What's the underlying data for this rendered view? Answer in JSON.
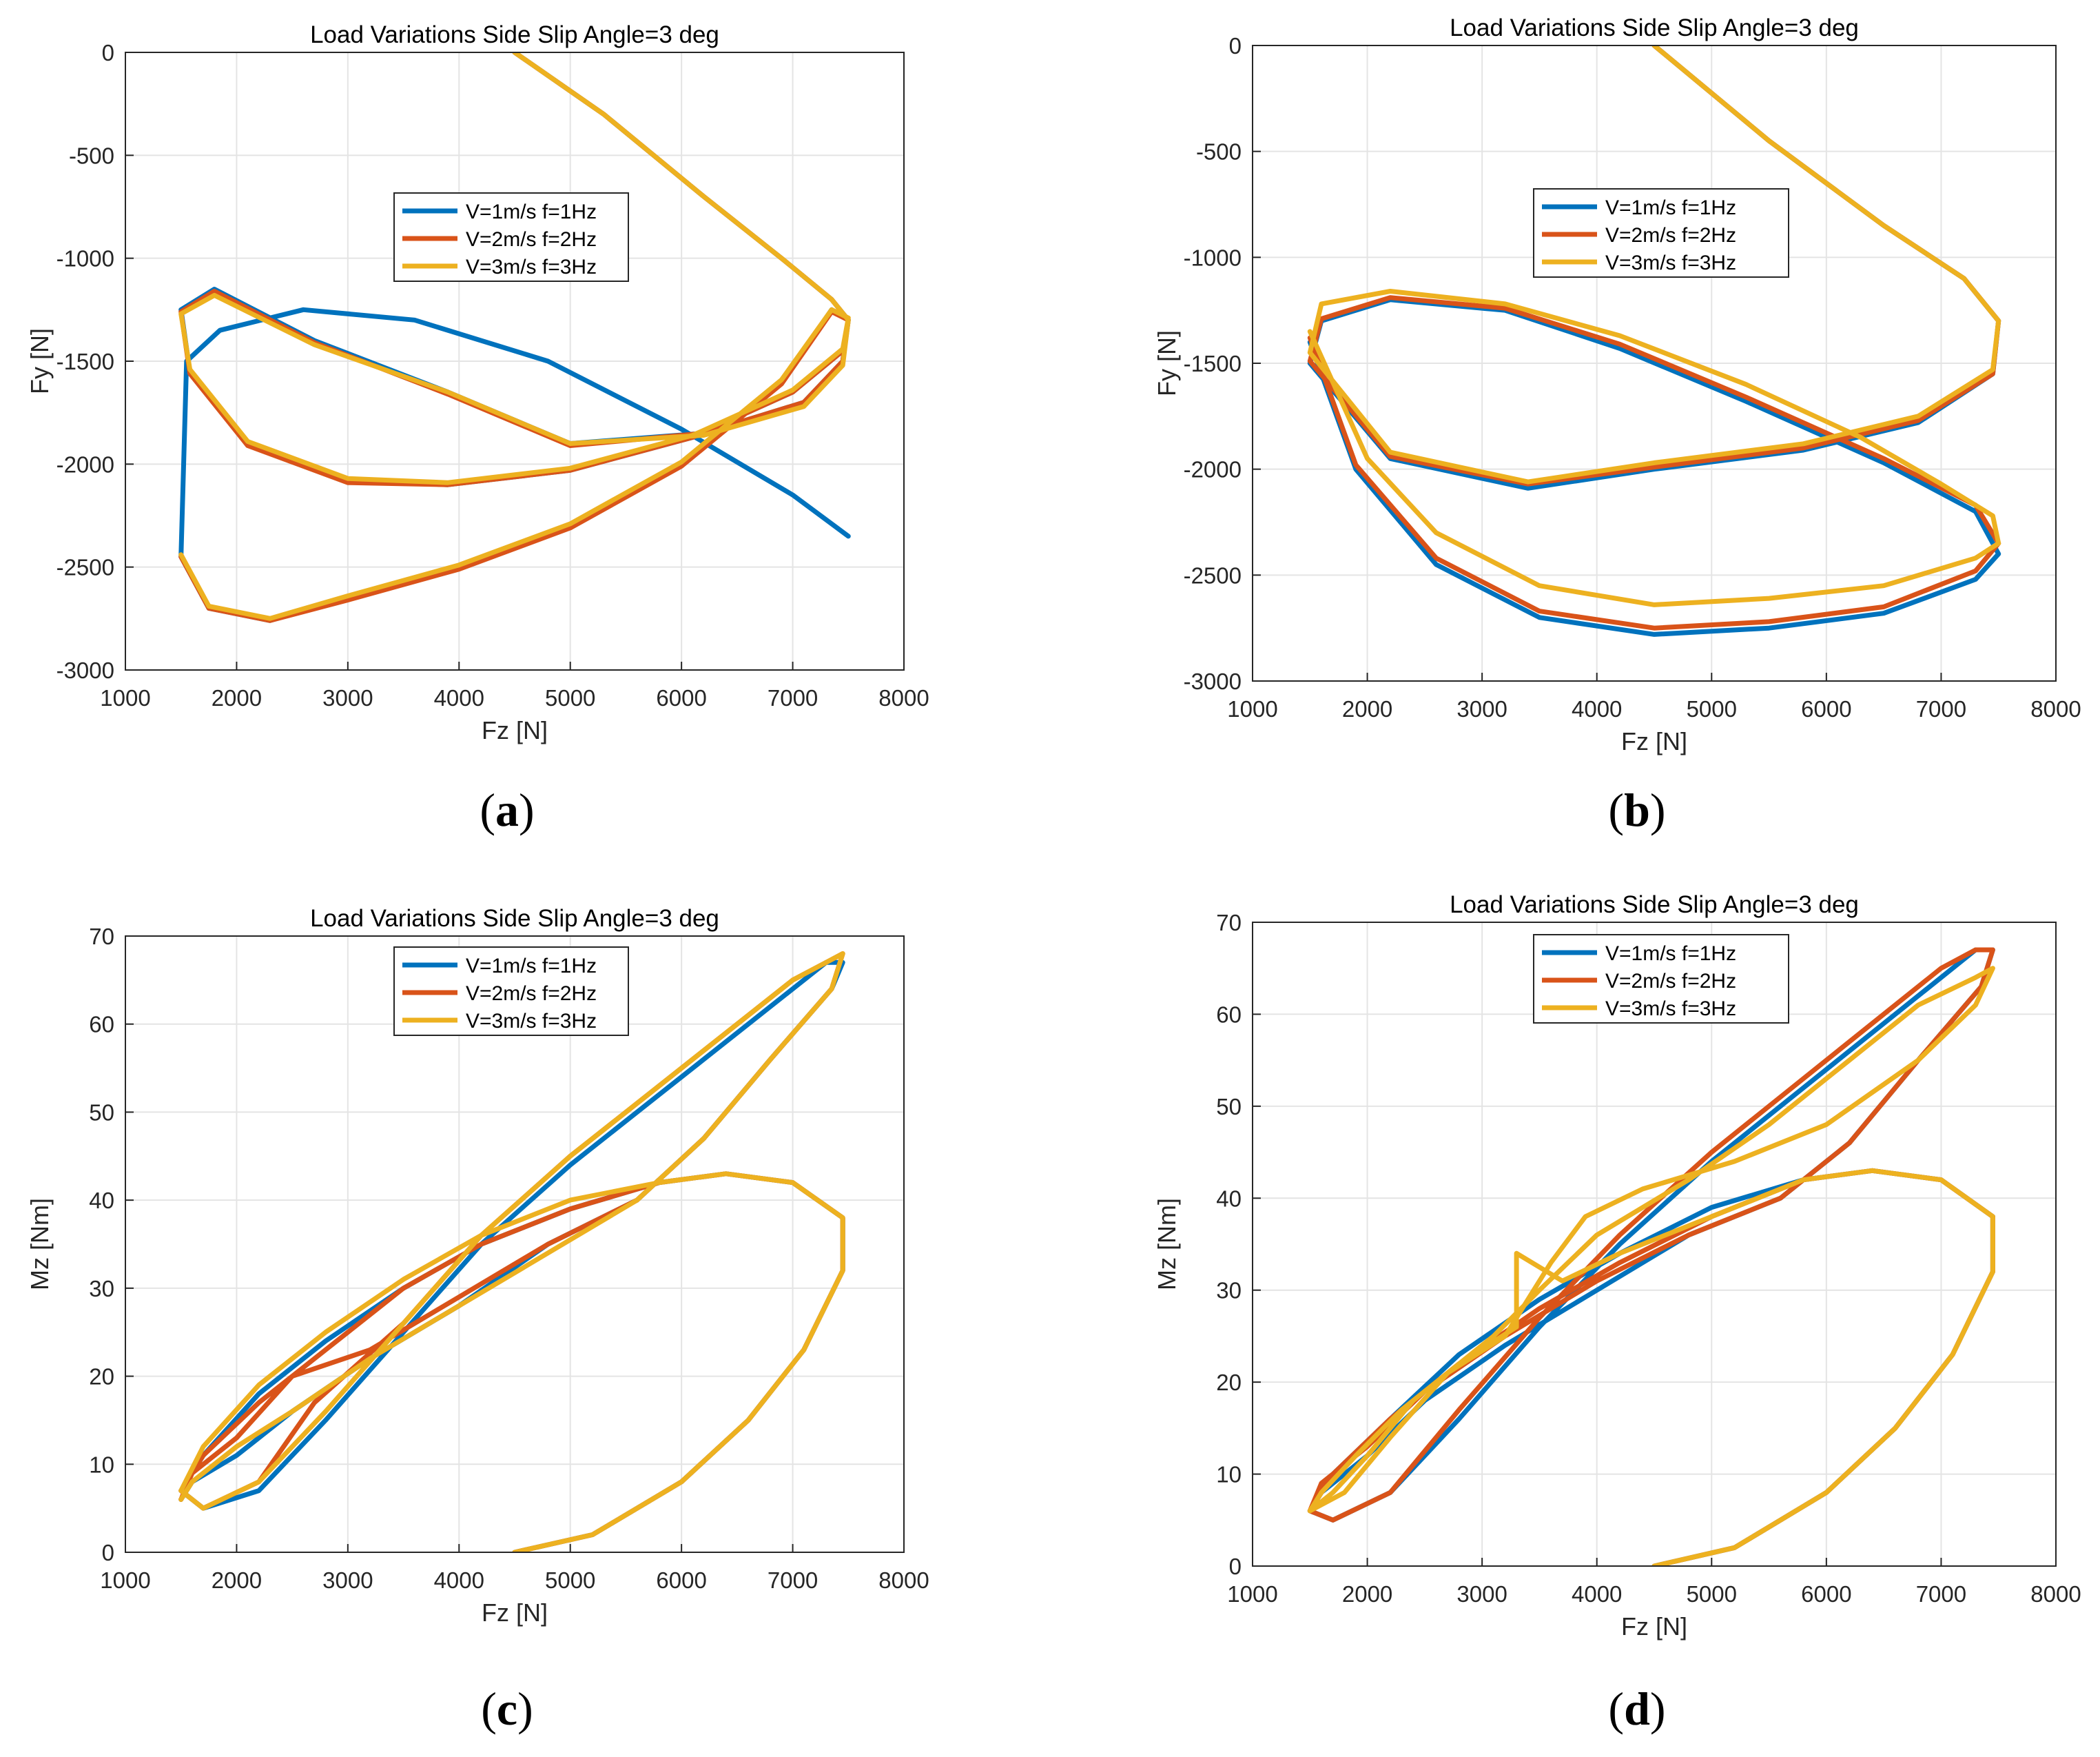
{
  "figure": {
    "captions": [
      {
        "letter": "a"
      },
      {
        "letter": "b"
      },
      {
        "letter": "c"
      },
      {
        "letter": "d"
      }
    ]
  },
  "chart_data": [
    {
      "id": "a",
      "type": "line",
      "title": "Load Variations  Side Slip Angle=3 deg",
      "xlabel": "Fz [N]",
      "ylabel": "Fy [N]",
      "xlim": [
        1000,
        8000
      ],
      "ylim": [
        -3000,
        0
      ],
      "xticks": [
        1000,
        2000,
        3000,
        4000,
        5000,
        6000,
        7000,
        8000
      ],
      "yticks": [
        0,
        -500,
        -1000,
        -1500,
        -2000,
        -2500,
        -3000
      ],
      "grid": true,
      "legend_position": "upper-center",
      "series": [
        {
          "name": "V=1m/s  f=1Hz",
          "color": "#0072BD",
          "x": [
            4500,
            5300,
            6200,
            6900,
            7350,
            7500,
            7450,
            7100,
            6200,
            5000,
            3900,
            2700,
            1800,
            1500,
            1580,
            2100,
            3000,
            3900,
            5000,
            6100,
            7000,
            7450,
            7500,
            7350,
            6900,
            6000,
            5000,
            4000,
            3000,
            2300,
            1750,
            1500,
            1550,
            1850,
            2600,
            3600,
            4800,
            6000,
            7000,
            7500
          ],
          "y": [
            0,
            -300,
            -700,
            -1000,
            -1200,
            -1300,
            -1500,
            -1700,
            -1850,
            -1900,
            -1650,
            -1400,
            -1150,
            -1250,
            -1550,
            -1900,
            -2080,
            -2100,
            -2030,
            -1870,
            -1650,
            -1450,
            -1300,
            -1250,
            -1600,
            -2000,
            -2300,
            -2500,
            -2650,
            -2760,
            -2700,
            -2450,
            -1500,
            -1350,
            -1250,
            -1300,
            -1500,
            -1830,
            -2150,
            -2350
          ]
        },
        {
          "name": "V=2m/s  f=2Hz",
          "color": "#D95319",
          "x": [
            4500,
            5300,
            6200,
            6900,
            7350,
            7500,
            7450,
            7100,
            6200,
            5000,
            3900,
            2700,
            1800,
            1500,
            1580,
            2100,
            3000,
            3900,
            5000,
            6100,
            7000,
            7450,
            7500,
            7350,
            6900,
            6000,
            5000,
            4000,
            3000,
            2300,
            1750,
            1500
          ],
          "y": [
            0,
            -300,
            -700,
            -1000,
            -1200,
            -1300,
            -1500,
            -1700,
            -1850,
            -1910,
            -1660,
            -1410,
            -1160,
            -1260,
            -1560,
            -1910,
            -2090,
            -2100,
            -2030,
            -1870,
            -1650,
            -1450,
            -1300,
            -1260,
            -1610,
            -2010,
            -2310,
            -2510,
            -2660,
            -2760,
            -2700,
            -2450
          ]
        },
        {
          "name": "V=3m/s  f=3Hz",
          "color": "#EDB120",
          "x": [
            4500,
            5300,
            6200,
            6900,
            7350,
            7500,
            7450,
            7100,
            6200,
            5000,
            3900,
            2700,
            1800,
            1500,
            1580,
            2100,
            3000,
            3900,
            5000,
            6100,
            7000,
            7450,
            7500,
            7350,
            6900,
            6000,
            5000,
            4000,
            3000,
            2300,
            1750,
            1500
          ],
          "y": [
            0,
            -300,
            -700,
            -1000,
            -1200,
            -1300,
            -1520,
            -1720,
            -1860,
            -1900,
            -1650,
            -1420,
            -1180,
            -1270,
            -1540,
            -1890,
            -2070,
            -2090,
            -2020,
            -1860,
            -1640,
            -1440,
            -1290,
            -1250,
            -1590,
            -1990,
            -2290,
            -2490,
            -2640,
            -2750,
            -2690,
            -2440
          ]
        }
      ]
    },
    {
      "id": "b",
      "type": "line",
      "title": "Load Variations  Side Slip Angle=3 deg",
      "xlabel": "Fz [N]",
      "ylabel": "Fy [N]",
      "xlim": [
        1000,
        8000
      ],
      "ylim": [
        -3000,
        0
      ],
      "xticks": [
        1000,
        2000,
        3000,
        4000,
        5000,
        6000,
        7000,
        8000
      ],
      "yticks": [
        0,
        -500,
        -1000,
        -1500,
        -2000,
        -2500,
        -3000
      ],
      "grid": true,
      "legend_position": "upper-center",
      "series": [
        {
          "name": "V=1m/s  f=1Hz",
          "color": "#0072BD",
          "x": [
            4500,
            5500,
            6500,
            7200,
            7500,
            7450,
            6800,
            5800,
            4500,
            3400,
            2200,
            1500,
            1600,
            2200,
            3200,
            4200,
            5300,
            6500,
            7300,
            7500,
            7300,
            6500,
            5500,
            4500,
            3500,
            2600,
            1900,
            1500
          ],
          "y": [
            0,
            -450,
            -850,
            -1100,
            -1300,
            -1550,
            -1780,
            -1910,
            -2000,
            -2090,
            -1950,
            -1500,
            -1300,
            -1200,
            -1250,
            -1430,
            -1680,
            -1970,
            -2200,
            -2400,
            -2520,
            -2680,
            -2750,
            -2780,
            -2700,
            -2450,
            -2000,
            -1400
          ]
        },
        {
          "name": "V=2m/s  f=2Hz",
          "color": "#D95319",
          "x": [
            4500,
            5500,
            6500,
            7200,
            7500,
            7450,
            6800,
            5800,
            4500,
            3400,
            2200,
            1500,
            1600,
            2200,
            3200,
            4200,
            5300,
            6500,
            7300,
            7500,
            7300,
            6500,
            5500,
            4500,
            3500,
            2600,
            1900,
            1500
          ],
          "y": [
            0,
            -450,
            -850,
            -1100,
            -1300,
            -1550,
            -1770,
            -1900,
            -1990,
            -2070,
            -1940,
            -1490,
            -1290,
            -1190,
            -1240,
            -1410,
            -1660,
            -1950,
            -2170,
            -2350,
            -2480,
            -2650,
            -2720,
            -2750,
            -2670,
            -2420,
            -1980,
            -1380
          ]
        },
        {
          "name": "V=3m/s  f=3Hz",
          "color": "#EDB120",
          "x": [
            4500,
            5500,
            6500,
            7200,
            7500,
            7450,
            6800,
            5800,
            4500,
            3400,
            2200,
            1500,
            1600,
            2200,
            3200,
            4200,
            5300,
            6300,
            7000,
            7450,
            7500,
            7300,
            6500,
            5500,
            4500,
            3500,
            2600,
            2000,
            1500
          ],
          "y": [
            0,
            -450,
            -850,
            -1100,
            -1300,
            -1530,
            -1750,
            -1880,
            -1970,
            -2060,
            -1920,
            -1450,
            -1220,
            -1160,
            -1220,
            -1370,
            -1600,
            -1850,
            -2070,
            -2220,
            -2350,
            -2420,
            -2550,
            -2610,
            -2640,
            -2550,
            -2300,
            -1950,
            -1350
          ]
        }
      ]
    },
    {
      "id": "c",
      "type": "line",
      "title": "Load Variations  Side Slip Angle=3 deg",
      "xlabel": "Fz [N]",
      "ylabel": "Mz [Nm]",
      "xlim": [
        1000,
        8000
      ],
      "ylim": [
        0,
        70
      ],
      "xticks": [
        1000,
        2000,
        3000,
        4000,
        5000,
        6000,
        7000,
        8000
      ],
      "yticks": [
        70,
        60,
        50,
        40,
        30,
        20,
        10,
        0
      ],
      "grid": true,
      "legend_position": "upper-center",
      "series": [
        {
          "name": "V=1m/s  f=1Hz",
          "color": "#0072BD",
          "x": [
            4500,
            5200,
            6000,
            6600,
            7100,
            7450,
            7450,
            7000,
            6400,
            5800,
            5000,
            4200,
            3500,
            2800,
            2200,
            1700,
            1500,
            1700,
            2200,
            2800,
            3500,
            4200,
            5000,
            5800,
            6500,
            7000,
            7300,
            7450,
            7350,
            6800,
            6200,
            5600,
            4800,
            4000,
            3200,
            2500,
            2000,
            1600,
            1500
          ],
          "y": [
            0,
            2,
            8,
            15,
            23,
            32,
            38,
            42,
            43,
            42,
            39,
            35,
            30,
            24,
            18,
            11,
            7,
            5,
            7,
            15,
            25,
            35,
            44,
            52,
            59,
            64,
            67,
            67,
            64,
            56,
            47,
            40,
            35,
            28,
            22,
            16,
            11,
            8,
            6
          ]
        },
        {
          "name": "V=2m/s  f=2Hz",
          "color": "#D95319",
          "x": [
            4500,
            5200,
            6000,
            6600,
            7100,
            7450,
            7450,
            7000,
            6400,
            5800,
            5000,
            4200,
            3500,
            2800,
            2200,
            1700,
            1500,
            1700,
            2200,
            2700,
            3500,
            4200,
            5000,
            5800,
            6500,
            7000,
            7300,
            7450,
            7350,
            6800,
            6200,
            5600,
            4800,
            4000,
            3200,
            2500,
            2000,
            1600,
            1500
          ],
          "y": [
            0,
            2,
            8,
            15,
            23,
            32,
            38,
            42,
            43,
            42,
            39,
            35,
            30,
            23,
            17,
            11,
            7,
            5,
            8,
            17,
            26,
            36,
            45,
            53,
            60,
            65,
            67,
            68,
            64,
            56,
            47,
            40,
            35,
            29,
            23,
            20,
            13,
            9,
            6
          ]
        },
        {
          "name": "V=3m/s  f=3Hz",
          "color": "#EDB120",
          "x": [
            4500,
            5200,
            6000,
            6600,
            7100,
            7450,
            7450,
            7000,
            6400,
            5800,
            5000,
            4200,
            3500,
            2800,
            2200,
            1700,
            1500,
            1700,
            2200,
            2800,
            3500,
            4200,
            5000,
            5800,
            6500,
            7000,
            7300,
            7450,
            7350,
            6800,
            6200,
            5600,
            4800,
            4000,
            3200,
            2500,
            2000,
            1600,
            1500
          ],
          "y": [
            0,
            2,
            8,
            15,
            23,
            32,
            38,
            42,
            43,
            42,
            40,
            36,
            31,
            25,
            19,
            12,
            7,
            5,
            8,
            16,
            26,
            36,
            45,
            53,
            60,
            65,
            67,
            68,
            64,
            56,
            47,
            40,
            34,
            28,
            22,
            16,
            12,
            8,
            6
          ]
        }
      ]
    },
    {
      "id": "d",
      "type": "line",
      "title": "Load Variations  Side Slip Angle=3 deg",
      "xlabel": "Fz [N]",
      "ylabel": "Mz [Nm]",
      "xlim": [
        1000,
        8000
      ],
      "ylim": [
        0,
        70
      ],
      "xticks": [
        1000,
        2000,
        3000,
        4000,
        5000,
        6000,
        7000,
        8000
      ],
      "yticks": [
        70,
        60,
        50,
        40,
        30,
        20,
        10,
        0
      ],
      "grid": true,
      "legend_position": "upper-left",
      "series": [
        {
          "name": "V=1m/s  f=1Hz",
          "color": "#0072BD",
          "x": [
            4500,
            5200,
            6000,
            6600,
            7100,
            7450,
            7450,
            7000,
            6400,
            5800,
            5000,
            4200,
            3500,
            2800,
            2200,
            1700,
            1500,
            1700,
            2200,
            2800,
            3500,
            4200,
            5000,
            5800,
            6500,
            7000,
            7300,
            7450,
            7350,
            6800,
            6200,
            5600,
            4800,
            4000,
            3200,
            2500,
            2000,
            1600,
            1500
          ],
          "y": [
            0,
            2,
            8,
            15,
            23,
            32,
            38,
            42,
            43,
            42,
            39,
            34,
            29,
            23,
            16,
            10,
            6,
            5,
            8,
            16,
            26,
            35,
            44,
            52,
            59,
            64,
            67,
            67,
            63,
            55,
            46,
            40,
            36,
            30,
            24,
            18,
            12,
            8,
            6
          ]
        },
        {
          "name": "V=2m/s  f=2Hz",
          "color": "#D95319",
          "x": [
            4500,
            5200,
            6000,
            6600,
            7100,
            7450,
            7450,
            7000,
            6400,
            5800,
            5000,
            4200,
            3500,
            2800,
            2200,
            1700,
            1500,
            1700,
            2200,
            2800,
            3500,
            4200,
            5000,
            5800,
            6500,
            7000,
            7300,
            7450,
            7350,
            6800,
            6200,
            5600,
            4800,
            4000,
            3200,
            2500,
            2000,
            1600,
            1500
          ],
          "y": [
            0,
            2,
            8,
            15,
            23,
            32,
            38,
            42,
            43,
            42,
            38,
            33,
            28,
            22,
            16,
            10,
            6,
            5,
            8,
            17,
            27,
            36,
            45,
            53,
            60,
            65,
            67,
            67,
            63,
            55,
            46,
            40,
            36,
            31,
            25,
            19,
            13,
            9,
            6
          ]
        },
        {
          "name": "V=3m/s  f=3Hz",
          "color": "#EDB120",
          "x": [
            4500,
            5200,
            6000,
            6600,
            7100,
            7450,
            7450,
            7000,
            6400,
            5800,
            5000,
            4200,
            3700,
            3300,
            3300,
            2800,
            2400,
            2000,
            1700,
            1500,
            1800,
            2200,
            2700,
            3100,
            3500,
            4000,
            4800,
            5500,
            6200,
            6800,
            7300,
            7450,
            7300,
            6800,
            6000,
            5200,
            4400,
            3900,
            3600,
            3200,
            2700,
            2300,
            1900,
            1600,
            1500
          ],
          "y": [
            0,
            2,
            8,
            15,
            23,
            32,
            38,
            42,
            43,
            42,
            38,
            34,
            31,
            34,
            26,
            22,
            18,
            12,
            8,
            6,
            8,
            14,
            21,
            25,
            30,
            36,
            42,
            48,
            55,
            61,
            64,
            65,
            61,
            55,
            48,
            44,
            41,
            38,
            33,
            25,
            21,
            17,
            12,
            8,
            6
          ]
        }
      ]
    }
  ]
}
